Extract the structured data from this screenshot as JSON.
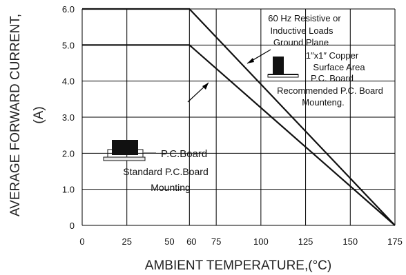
{
  "chart_data": {
    "type": "line",
    "ylabel_line1": "AVERAGE FORWARD CURRENT,",
    "ylabel_line2": "(A)",
    "xlabel": "AMBIENT TEMPERATURE,(°C)",
    "xlim": [
      0,
      175
    ],
    "ylim": [
      0,
      6
    ],
    "xticks": [
      {
        "v": 0,
        "label": "0"
      },
      {
        "v": 25,
        "label": "25"
      },
      {
        "v": 50,
        "label": "50"
      },
      {
        "v": 60,
        "label": "60"
      },
      {
        "v": 75,
        "label": "75"
      },
      {
        "v": 100,
        "label": "100"
      },
      {
        "v": 125,
        "label": "125"
      },
      {
        "v": 150,
        "label": "150"
      },
      {
        "v": 175,
        "label": "175"
      }
    ],
    "yticks": [
      {
        "v": 0,
        "label": "0"
      },
      {
        "v": 1,
        "label": "1.0"
      },
      {
        "v": 2,
        "label": "2.0"
      },
      {
        "v": 3,
        "label": "3.0"
      },
      {
        "v": 4,
        "label": "4.0"
      },
      {
        "v": 5,
        "label": "5.0"
      },
      {
        "v": 6,
        "label": "6.0"
      }
    ],
    "xgrid": [
      0,
      25,
      60,
      75,
      100,
      125,
      150,
      175
    ],
    "ygrid": [
      0,
      1,
      2,
      3,
      4,
      5,
      6
    ],
    "grid": true,
    "series": [
      {
        "x": [
          0,
          60,
          175
        ],
        "y": [
          6.0,
          6.0,
          0
        ]
      },
      {
        "x": [
          0,
          60,
          175
        ],
        "y": [
          5.0,
          5.0,
          0
        ]
      }
    ],
    "annotations": {
      "right_lines": [
        "60 Hz Resistive or",
        "Inductive Loads",
        "Ground Plane"
      ],
      "copper_lines": [
        "1″x1″ Copper",
        "Surface Area",
        "P.C. Board"
      ],
      "recommended_lines": [
        "Recommended P.C. Board",
        "Mounteng."
      ],
      "pcboard_label": "P.C.Board",
      "standard_lines": [
        "Standard P.C.Board",
        "Mounting"
      ]
    }
  }
}
